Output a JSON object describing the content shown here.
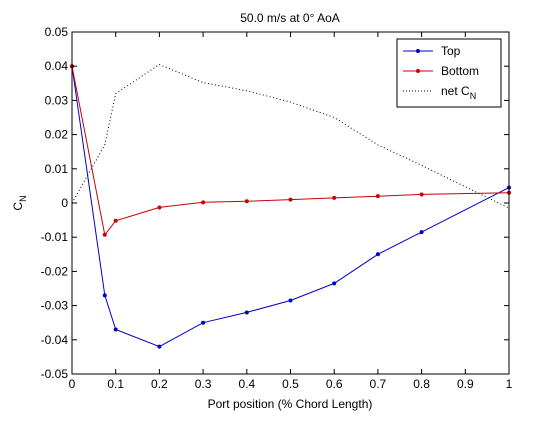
{
  "chart_data": {
    "type": "line",
    "title": "50.0 m/s at 0° AoA",
    "xlabel": "Port position (% Chord Length)",
    "ylabel": {
      "main": "C",
      "sub": "N"
    },
    "xlim": [
      0,
      1
    ],
    "ylim": [
      -0.05,
      0.05
    ],
    "xticks": [
      0,
      0.1,
      0.2,
      0.3,
      0.4,
      0.5,
      0.6,
      0.7,
      0.8,
      0.9,
      1
    ],
    "xtick_labels": [
      "0",
      "0.1",
      "0.2",
      "0.3",
      "0.4",
      "0.5",
      "0.6",
      "0.7",
      "0.8",
      "0.9",
      "1"
    ],
    "yticks": [
      -0.05,
      -0.04,
      -0.03,
      -0.02,
      -0.01,
      0,
      0.01,
      0.02,
      0.03,
      0.04,
      0.05
    ],
    "ytick_labels": [
      "-0.05",
      "-0.04",
      "-0.03",
      "-0.02",
      "-0.01",
      "0",
      "0.01",
      "0.02",
      "0.03",
      "0.04",
      "0.05"
    ],
    "grid": false,
    "legend_position": "top-right",
    "series": [
      {
        "name": "Top",
        "color": "#0000cc",
        "style": "solid",
        "marker": "point",
        "x": [
          0,
          0.075,
          0.1,
          0.2,
          0.3,
          0.4,
          0.5,
          0.6,
          0.7,
          0.8,
          1.0
        ],
        "y": [
          0.04,
          -0.027,
          -0.037,
          -0.042,
          -0.035,
          -0.032,
          -0.0285,
          -0.0235,
          -0.015,
          -0.0085,
          0.0045
        ]
      },
      {
        "name": "Bottom",
        "color": "#cc0000",
        "style": "solid",
        "marker": "point",
        "x": [
          0,
          0.075,
          0.1,
          0.2,
          0.3,
          0.4,
          0.5,
          0.6,
          0.7,
          0.8,
          1.0
        ],
        "y": [
          0.04,
          -0.0093,
          -0.0052,
          -0.0013,
          0.0002,
          0.0005,
          0.001,
          0.0015,
          0.002,
          0.0025,
          0.003
        ]
      },
      {
        "name": {
          "main": "net C",
          "sub": "N"
        },
        "color": "#000000",
        "style": "dotted",
        "marker": "none",
        "x": [
          0,
          0.075,
          0.1,
          0.2,
          0.3,
          0.4,
          0.5,
          0.6,
          0.7,
          0.8,
          1.0
        ],
        "y": [
          0.0,
          0.017,
          0.032,
          0.0405,
          0.0352,
          0.0328,
          0.0295,
          0.025,
          0.017,
          0.011,
          -0.0015
        ]
      }
    ]
  }
}
